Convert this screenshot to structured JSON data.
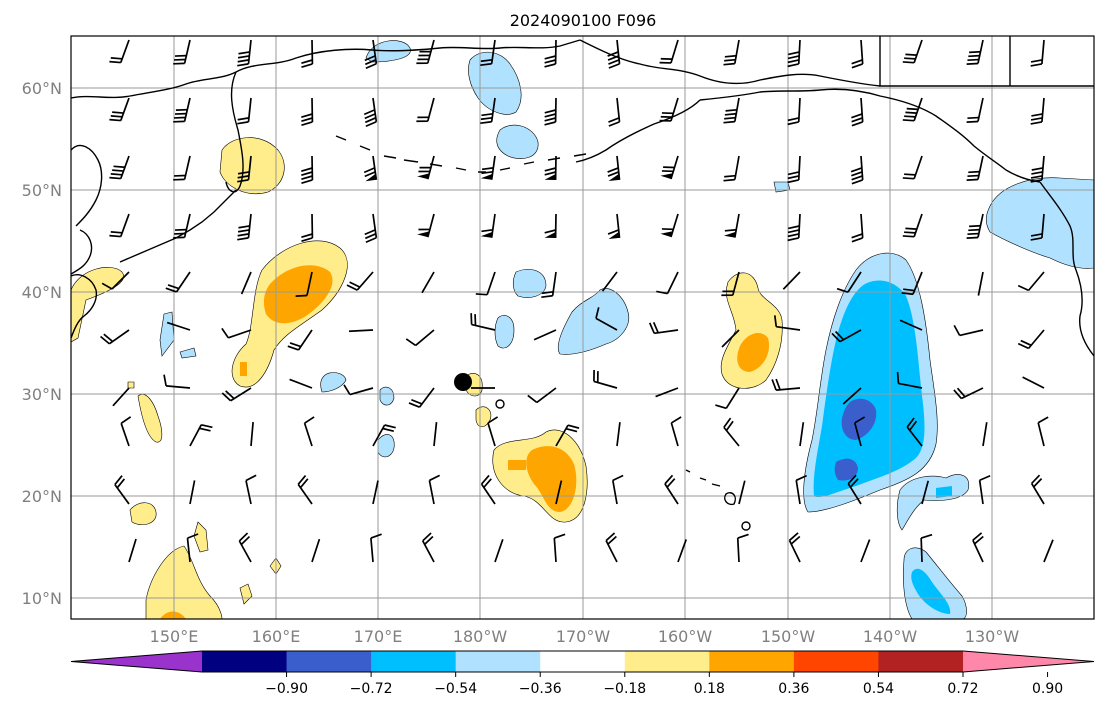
{
  "title": "2024090100 F096",
  "lat_labels": [
    "60°N",
    "50°N",
    "40°N",
    "30°N",
    "20°N",
    "10°N"
  ],
  "lon_labels": [
    "150°E",
    "160°E",
    "170°E",
    "180°W",
    "170°W",
    "160°W",
    "150°W",
    "140°W",
    "130°W"
  ],
  "colorbar": {
    "ticks": [
      "−0.90",
      "−0.72",
      "−0.54",
      "−0.36",
      "−0.18",
      "0.18",
      "0.36",
      "0.54",
      "0.72",
      "0.90"
    ],
    "colors": [
      "#9933cc",
      "#000080",
      "#3a5fcd",
      "#00bfff",
      "#b0e2ff",
      "#ffffff",
      "#ffec8b",
      "#ffa500",
      "#ff4500",
      "#b22222",
      "#ff88aa"
    ]
  },
  "colors": {
    "yellow": "#ffec8b",
    "orange": "#ffa500",
    "lightblue": "#b0e2ff",
    "blue": "#00bfff",
    "royal": "#3a5fcd"
  }
}
